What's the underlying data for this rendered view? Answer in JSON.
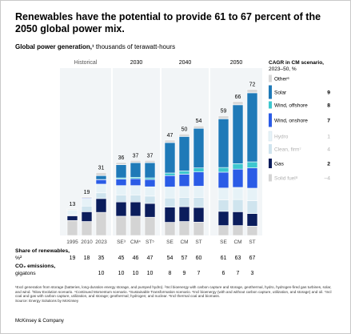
{
  "page": {
    "title": "Renewables have the potential to provide 61 to 67 percent of the 2050 global power mix.",
    "subtitle_bold": "Global power generation,¹",
    "subtitle_rest": " thousands of terawatt-hours",
    "footnote": "¹Excl generation from storage (batteries, long-duration energy storage, and pumped hydro). ²Incl bioenergy with carbon capture and storage, geothermal, hydro, hydrogen-fired gas turbines, solar, and wind. ³Slow Evolution scenario. ⁴Continued Momentum scenario. ⁵Sustainable Transformation scenario. ⁶Incl bioenergy (with and without carbon capture, utilization, and storage) and oil. ⁷Incl coal and gas with carbon capture, utilization, and storage; geothermal; hydrogen; and nuclear. ⁸Incl thermal coal and biomass.",
    "source": "Source: Energy Solutions by McKinsey",
    "brand": "McKinsey & Company"
  },
  "chart_data": {
    "type": "bar",
    "stacked": true,
    "groups": [
      "Historical",
      "2030",
      "2040",
      "2050"
    ],
    "bars": [
      {
        "group": "Historical",
        "label": "1995",
        "total": 13,
        "values": {
          "Other": 0.4,
          "Solar": 0,
          "Wind, offshore": 0,
          "Wind, onshore": 0,
          "Hydro": 2.6,
          "Clean, firm": 0.3,
          "Gas": 2.3,
          "Solid fuel": 7.4
        }
      },
      {
        "group": "Historical",
        "label": "2010",
        "total": 19,
        "values": {
          "Other": 0.5,
          "Solar": 0.1,
          "Wind, offshore": 0,
          "Wind, onshore": 0.4,
          "Hydro": 3.5,
          "Clean, firm": 2.8,
          "Gas": 4.8,
          "Solid fuel": 6.9
        }
      },
      {
        "group": "Historical",
        "label": "2023",
        "total": 31,
        "values": {
          "Other": 1.5,
          "Solar": 1.9,
          "Wind, offshore": 0.1,
          "Wind, onshore": 2.2,
          "Hydro": 4.3,
          "Clean, firm": 2.8,
          "Gas": 6.8,
          "Solid fuel": 11.4
        }
      },
      {
        "group": "2030",
        "label": "SE³",
        "total": 36,
        "values": {
          "Other": 1.1,
          "Solar": 6.5,
          "Wind, offshore": 0.6,
          "Wind, onshore": 3.2,
          "Hydro": 4.6,
          "Clean, firm": 3.5,
          "Gas": 7.0,
          "Solid fuel": 9.5
        }
      },
      {
        "group": "2030",
        "label": "CM⁴",
        "total": 37,
        "values": {
          "Other": 1.1,
          "Solar": 7.2,
          "Wind, offshore": 0.7,
          "Wind, onshore": 3.4,
          "Hydro": 4.6,
          "Clean, firm": 3.5,
          "Gas": 7.0,
          "Solid fuel": 9.5
        }
      },
      {
        "group": "2030",
        "label": "ST⁵",
        "total": 37,
        "values": {
          "Other": 1.1,
          "Solar": 7.5,
          "Wind, offshore": 0.8,
          "Wind, onshore": 3.6,
          "Hydro": 4.6,
          "Clean, firm": 3.6,
          "Gas": 6.8,
          "Solid fuel": 9.0
        }
      },
      {
        "group": "2040",
        "label": "SE",
        "total": 47,
        "values": {
          "Other": 1.2,
          "Solar": 15.0,
          "Wind, offshore": 1.3,
          "Wind, onshore": 5.6,
          "Hydro": 5.4,
          "Clean, firm": 4.5,
          "Gas": 7.5,
          "Solid fuel": 6.5
        }
      },
      {
        "group": "2040",
        "label": "CM",
        "total": 50,
        "values": {
          "Other": 1.2,
          "Solar": 17.0,
          "Wind, offshore": 1.6,
          "Wind, onshore": 6.0,
          "Hydro": 5.4,
          "Clean, firm": 4.6,
          "Gas": 7.3,
          "Solid fuel": 6.9
        }
      },
      {
        "group": "2040",
        "label": "ST",
        "total": 54,
        "values": {
          "Other": 1.2,
          "Solar": 19.5,
          "Wind, offshore": 2.0,
          "Wind, onshore": 7.0,
          "Hydro": 5.5,
          "Clean, firm": 5.0,
          "Gas": 7.2,
          "Solid fuel": 6.6
        }
      },
      {
        "group": "2050",
        "label": "SE",
        "total": 59,
        "values": {
          "Other": 1.5,
          "Solar": 24.0,
          "Wind, offshore": 2.3,
          "Wind, onshore": 7.8,
          "Hydro": 5.9,
          "Clean, firm": 5.6,
          "Gas": 7.0,
          "Solid fuel": 4.9
        }
      },
      {
        "group": "2050",
        "label": "CM",
        "total": 66,
        "values": {
          "Other": 1.6,
          "Solar": 29.0,
          "Wind, offshore": 2.7,
          "Wind, onshore": 9.0,
          "Hydro": 6.0,
          "Clean, firm": 6.0,
          "Gas": 6.8,
          "Solid fuel": 4.9
        }
      },
      {
        "group": "2050",
        "label": "ST",
        "total": 72,
        "values": {
          "Other": 1.7,
          "Solar": 34.0,
          "Wind, offshore": 3.0,
          "Wind, onshore": 10.0,
          "Hydro": 6.2,
          "Clean, firm": 6.3,
          "Gas": 6.2,
          "Solid fuel": 4.6
        }
      }
    ],
    "stack_order_bottom_to_top": [
      "Solid fuel",
      "Gas",
      "Clean, firm",
      "Hydro",
      "Wind, onshore",
      "Wind, offshore",
      "Solar",
      "Other"
    ],
    "legend": {
      "title": "CAGR in CM scenario, 2023–50, %",
      "items": [
        {
          "name": "Other⁶",
          "value": "",
          "color": "#d9d9d9",
          "faded": false
        },
        {
          "name": "Solar",
          "value": "9",
          "color": "#1f7ab8",
          "faded": false
        },
        {
          "name": "Wind, offshore",
          "value": "8",
          "color": "#3ec7cf",
          "faded": false
        },
        {
          "name": "Wind, onshore",
          "value": "7",
          "color": "#2b5ce6",
          "faded": false
        },
        {
          "name": "Hydro",
          "value": "1",
          "color": "#e6f2f7",
          "faded": true
        },
        {
          "name": "Clean, firm⁷",
          "value": "4",
          "color": "#cfe4ee",
          "faded": true
        },
        {
          "name": "Gas",
          "value": "2",
          "color": "#0b1d5c",
          "faded": false
        },
        {
          "name": "Solid fuel⁸",
          "value": "–4",
          "color": "#d4d4d4",
          "faded": true
        }
      ]
    },
    "share_of_renewables": {
      "label": "Share of renewables,",
      "unit_label": "%²",
      "values": [
        19,
        18,
        35,
        45,
        46,
        47,
        54,
        57,
        60,
        61,
        63,
        67
      ]
    },
    "co2_emissions": {
      "label": "CO₂ emissions,",
      "unit_label": "gigatons",
      "values": [
        "",
        "",
        "10",
        "10",
        "10",
        "10",
        "8",
        "9",
        "7",
        "6",
        "7",
        "3"
      ]
    },
    "ylim": [
      0,
      75
    ],
    "colors": {
      "Other": "#d9d9d9",
      "Solar": "#1f7ab8",
      "Wind, offshore": "#3ec7cf",
      "Wind, onshore": "#2b5ce6",
      "Hydro": "#e6f2f7",
      "Clean, firm": "#cfe4ee",
      "Gas": "#0b1d5c",
      "Solid fuel": "#d4d4d4",
      "panel_bg": "#f2f5f7"
    }
  }
}
